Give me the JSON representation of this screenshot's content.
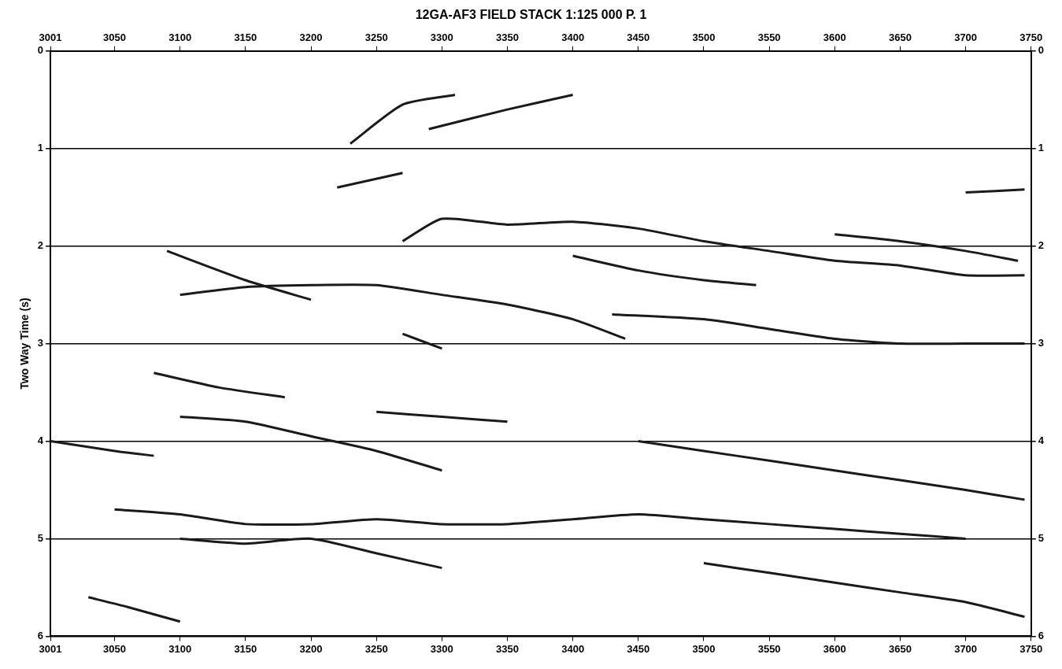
{
  "chart_data": {
    "type": "line",
    "title": "12GA-AF3 FIELD STACK 1:125 000 P. 1",
    "y_label": "Two Way Time (s)",
    "xlim": [
      3001,
      3750
    ],
    "xticks": [
      3001,
      3050,
      3100,
      3150,
      3200,
      3250,
      3300,
      3350,
      3400,
      3450,
      3500,
      3550,
      3600,
      3650,
      3700,
      3750
    ],
    "ylim": [
      0,
      6
    ],
    "yticks": [
      0,
      1,
      2,
      3,
      4,
      5,
      6
    ],
    "grid": true,
    "color": "#1a1a1a",
    "series": [
      {
        "x": [
          3230,
          3270,
          3310
        ],
        "values": [
          0.95,
          0.55,
          0.45
        ]
      },
      {
        "x": [
          3290,
          3350,
          3400
        ],
        "values": [
          0.8,
          0.6,
          0.45
        ]
      },
      {
        "x": [
          3220,
          3270
        ],
        "values": [
          1.4,
          1.25
        ]
      },
      {
        "x": [
          3700,
          3745
        ],
        "values": [
          1.45,
          1.42
        ]
      },
      {
        "x": [
          3270,
          3300,
          3350,
          3400,
          3450,
          3500,
          3550,
          3600,
          3650,
          3700,
          3745
        ],
        "values": [
          1.95,
          1.72,
          1.78,
          1.75,
          1.82,
          1.95,
          2.05,
          2.15,
          2.2,
          2.3,
          2.3
        ]
      },
      {
        "x": [
          3600,
          3650,
          3700,
          3740
        ],
        "values": [
          1.88,
          1.95,
          2.05,
          2.15
        ]
      },
      {
        "x": [
          3090,
          3150,
          3200
        ],
        "values": [
          2.05,
          2.35,
          2.55
        ]
      },
      {
        "x": [
          3100,
          3150,
          3200,
          3250,
          3300,
          3350,
          3400,
          3440
        ],
        "values": [
          2.5,
          2.42,
          2.4,
          2.4,
          2.5,
          2.6,
          2.75,
          2.95
        ]
      },
      {
        "x": [
          3270,
          3300
        ],
        "values": [
          2.9,
          3.05
        ]
      },
      {
        "x": [
          3400,
          3450,
          3500,
          3540
        ],
        "values": [
          2.1,
          2.25,
          2.35,
          2.4
        ]
      },
      {
        "x": [
          3430,
          3500,
          3550,
          3600,
          3650,
          3700,
          3745
        ],
        "values": [
          2.7,
          2.75,
          2.85,
          2.95,
          3.0,
          3.0,
          3.0
        ]
      },
      {
        "x": [
          3080,
          3130,
          3180
        ],
        "values": [
          3.3,
          3.45,
          3.55
        ]
      },
      {
        "x": [
          3100,
          3150,
          3200,
          3250,
          3300
        ],
        "values": [
          3.75,
          3.8,
          3.95,
          4.1,
          4.3
        ]
      },
      {
        "x": [
          3001,
          3050,
          3080
        ],
        "values": [
          4.0,
          4.1,
          4.15
        ]
      },
      {
        "x": [
          3250,
          3300,
          3350
        ],
        "values": [
          3.7,
          3.75,
          3.8
        ]
      },
      {
        "x": [
          3450,
          3500,
          3550,
          3600,
          3650,
          3700,
          3745
        ],
        "values": [
          4.0,
          4.1,
          4.2,
          4.3,
          4.4,
          4.5,
          4.6
        ]
      },
      {
        "x": [
          3050,
          3100,
          3150,
          3200,
          3250,
          3300,
          3350,
          3400,
          3450,
          3500,
          3550,
          3600,
          3650,
          3700
        ],
        "values": [
          4.7,
          4.75,
          4.85,
          4.85,
          4.8,
          4.85,
          4.85,
          4.8,
          4.75,
          4.8,
          4.85,
          4.9,
          4.95,
          5.0
        ]
      },
      {
        "x": [
          3100,
          3150,
          3200,
          3250,
          3300
        ],
        "values": [
          5.0,
          5.05,
          5.0,
          5.15,
          5.3
        ]
      },
      {
        "x": [
          3500,
          3550,
          3600,
          3650,
          3700,
          3745
        ],
        "values": [
          5.25,
          5.35,
          5.45,
          5.55,
          5.65,
          5.8
        ]
      },
      {
        "x": [
          3030,
          3060,
          3100
        ],
        "values": [
          5.6,
          5.7,
          5.85
        ]
      }
    ]
  }
}
